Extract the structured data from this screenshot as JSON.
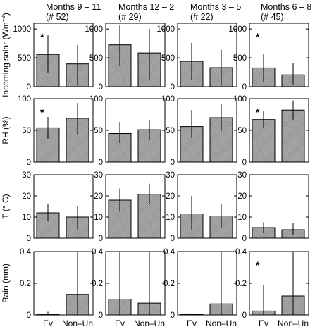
{
  "chart_data": {
    "type": "bar",
    "bar_color": "#a6a6a6",
    "columns": [
      {
        "title": "Months 9 – 11",
        "count": "(# 52)"
      },
      {
        "title": "Months 12 – 2",
        "count": "(# 29)"
      },
      {
        "title": "Months 3 – 5",
        "count": "(# 22)"
      },
      {
        "title": "Months 6 – 8",
        "count": "(# 45)"
      }
    ],
    "categories": [
      "Ev",
      "Non–Un"
    ],
    "rows": [
      {
        "ylabel": "Incoming solar (Wm",
        "ylabel_sup": "−2",
        "ylabel_end": ")",
        "ylim": [
          0,
          1100
        ],
        "ticks": [
          0,
          500,
          1000
        ],
        "panels": [
          {
            "values": [
              560,
              395
            ],
            "err": [
              [
                240,
                890
              ],
              [
                20,
                720
              ]
            ],
            "star": true
          },
          {
            "values": [
              725,
              585
            ],
            "err": [
              [
                370,
                1060
              ],
              [
                120,
                1000
              ]
            ],
            "star": false
          },
          {
            "values": [
              440,
              330
            ],
            "err": [
              [
                120,
                760
              ],
              [
                20,
                640
              ]
            ],
            "star": false
          },
          {
            "values": [
              325,
              205
            ],
            "err": [
              [
                80,
                570
              ],
              [
                40,
                410
              ]
            ],
            "star": true
          }
        ]
      },
      {
        "ylabel": "RH (%)",
        "ylim": [
          0,
          100
        ],
        "ticks": [
          0,
          50,
          100
        ],
        "panels": [
          {
            "values": [
              54,
              69
            ],
            "err": [
              [
                37,
                71
              ],
              [
                43,
                93
              ]
            ],
            "star": true
          },
          {
            "values": [
              45,
              51
            ],
            "err": [
              [
                30,
                63
              ],
              [
                34,
                66
              ]
            ],
            "star": false
          },
          {
            "values": [
              56,
              70
            ],
            "err": [
              [
                38,
                82
              ],
              [
                49,
                92
              ]
            ],
            "star": false
          },
          {
            "values": [
              67,
              82
            ],
            "err": [
              [
                53,
                80
              ],
              [
                67,
                97
              ]
            ],
            "star": true
          }
        ]
      },
      {
        "ylabel": "T (° C)",
        "ylim": [
          0,
          30
        ],
        "ticks": [
          0,
          10,
          20,
          30
        ],
        "panels": [
          {
            "values": [
              12,
              10
            ],
            "err": [
              [
                8,
                16
              ],
              [
                4,
                15
              ]
            ],
            "star": false
          },
          {
            "values": [
              18,
              20.8
            ],
            "err": [
              [
                12.5,
                23.5
              ],
              [
                16,
                25.8
              ]
            ],
            "star": false
          },
          {
            "values": [
              11.5,
              10.5
            ],
            "err": [
              [
                4,
                20
              ],
              [
                5,
                16
              ]
            ],
            "star": false
          },
          {
            "values": [
              5,
              4
            ],
            "err": [
              [
                2.5,
                7.5
              ],
              [
                1.5,
                7
              ]
            ],
            "star": false
          }
        ]
      },
      {
        "ylabel": "Rain (mm)",
        "ylim": [
          0,
          0.4
        ],
        "ticks": [
          0,
          0.2,
          0.4
        ],
        "panels": [
          {
            "values": [
              0.002,
              0.13
            ],
            "err": [
              [
                0,
                0.02
              ],
              [
                0,
                0.4
              ]
            ],
            "star": false
          },
          {
            "values": [
              0.1,
              0.075
            ],
            "err": [
              [
                0,
                0.4
              ],
              [
                0,
                0.4
              ]
            ],
            "star": false
          },
          {
            "values": [
              0.003,
              0.07
            ],
            "err": [
              [
                0,
                0.01
              ],
              [
                0,
                0.4
              ]
            ],
            "star": false
          },
          {
            "values": [
              0.025,
              0.12
            ],
            "err": [
              [
                0,
                0.19
              ],
              [
                0,
                0.4
              ]
            ],
            "star": true
          }
        ]
      }
    ]
  }
}
